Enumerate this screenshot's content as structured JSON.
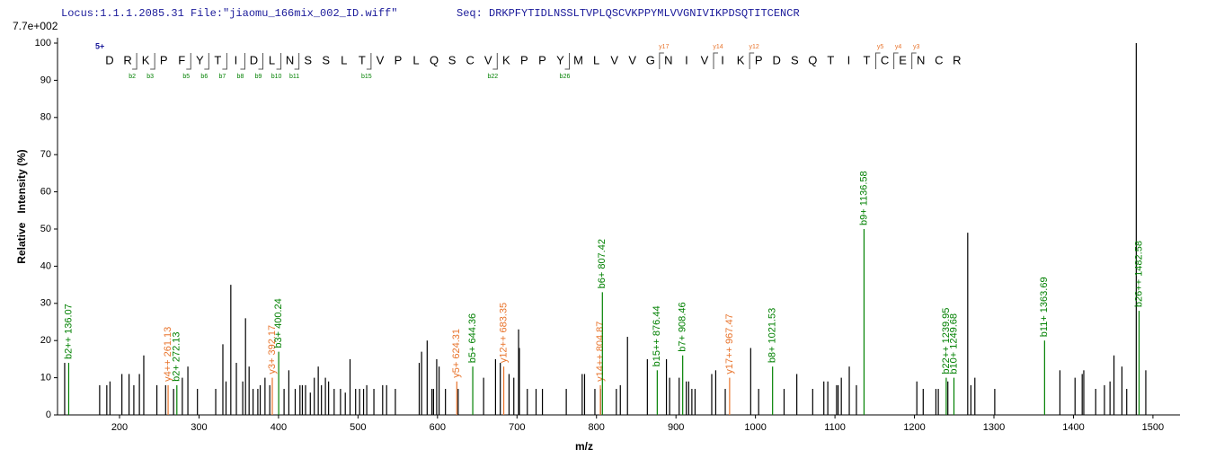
{
  "chart_data": {
    "type": "spectrum",
    "locus": "Locus:1.1.1.2085.31 File:\"jiaomu_166mix_002_ID.wiff\"",
    "seq": "Seq: DRKPFYTIDLNSSLTVPLQSCVKPPYMLVVGNIVIKPDSQTITCENCR",
    "scale_label": "7.7e+002",
    "charge": "5+",
    "x_label": "m/z",
    "y_label": "Relative   Intensity (%)",
    "xlim": [
      122,
      1534
    ],
    "ylim": [
      0,
      100
    ],
    "xticks": [
      200,
      300,
      400,
      500,
      600,
      700,
      800,
      900,
      1000,
      1100,
      1200,
      1300,
      1400,
      1500
    ],
    "yticks": [
      0,
      10,
      20,
      30,
      40,
      50,
      60,
      70,
      80,
      90,
      100
    ],
    "peak_color": "#000000",
    "sequence": [
      {
        "aa": "D"
      },
      {
        "aa": "R",
        "b": "b2"
      },
      {
        "aa": "K",
        "b": "b3"
      },
      {
        "aa": "P"
      },
      {
        "aa": "F",
        "b": "b5"
      },
      {
        "aa": "Y",
        "b": "b6"
      },
      {
        "aa": "T",
        "b": "b7"
      },
      {
        "aa": "I",
        "b": "b8"
      },
      {
        "aa": "D",
        "b": "b9"
      },
      {
        "aa": "L",
        "b": "b10"
      },
      {
        "aa": "N",
        "b": "b11"
      },
      {
        "aa": "S"
      },
      {
        "aa": "S"
      },
      {
        "aa": "L"
      },
      {
        "aa": "T",
        "b": "b15"
      },
      {
        "aa": "V"
      },
      {
        "aa": "P"
      },
      {
        "aa": "L"
      },
      {
        "aa": "Q"
      },
      {
        "aa": "S"
      },
      {
        "aa": "C"
      },
      {
        "aa": "V",
        "b": "b22"
      },
      {
        "aa": "K"
      },
      {
        "aa": "P"
      },
      {
        "aa": "P"
      },
      {
        "aa": "Y",
        "b": "b26"
      },
      {
        "aa": "M"
      },
      {
        "aa": "L"
      },
      {
        "aa": "V"
      },
      {
        "aa": "V"
      },
      {
        "aa": "G"
      },
      {
        "aa": "N",
        "y": "y17"
      },
      {
        "aa": "I"
      },
      {
        "aa": "V"
      },
      {
        "aa": "I",
        "y": "y14"
      },
      {
        "aa": "K"
      },
      {
        "aa": "P",
        "y": "y12"
      },
      {
        "aa": "D"
      },
      {
        "aa": "S"
      },
      {
        "aa": "Q"
      },
      {
        "aa": "T"
      },
      {
        "aa": "I"
      },
      {
        "aa": "T"
      },
      {
        "aa": "C",
        "y": "y5"
      },
      {
        "aa": "E",
        "y": "y4"
      },
      {
        "aa": "N",
        "y": "y3"
      },
      {
        "aa": "C"
      },
      {
        "aa": "R"
      }
    ],
    "b_color": "#008000",
    "y_color": "#e8742c",
    "peaks": {
      "x": [
        131,
        175,
        184,
        188,
        203,
        212,
        218,
        225,
        230.5,
        247,
        258,
        268,
        279,
        286,
        298,
        321,
        330,
        334,
        340,
        347,
        355,
        358.5,
        363,
        368,
        374,
        377,
        383,
        389,
        407,
        413,
        421,
        427,
        430,
        434,
        440,
        445,
        450,
        454,
        459,
        463,
        470,
        478,
        484,
        490,
        497,
        502,
        507,
        511,
        520,
        531,
        536,
        547,
        577,
        580,
        587,
        593,
        595,
        599,
        602,
        610,
        626,
        658,
        673,
        679,
        690,
        696,
        702,
        703,
        713,
        724,
        732,
        762,
        782,
        785,
        798,
        805,
        825,
        830,
        839,
        864,
        888,
        892,
        904,
        913,
        916,
        920,
        924,
        945,
        950,
        962,
        994,
        1004,
        1036,
        1052,
        1072,
        1086,
        1091,
        1102,
        1104,
        1108,
        1118,
        1127,
        1203,
        1211,
        1227,
        1230,
        1242,
        1267,
        1271,
        1276,
        1301,
        1383,
        1402,
        1411,
        1413,
        1428,
        1439,
        1446,
        1451,
        1461,
        1467,
        1479,
        1491
      ],
      "values": [
        14,
        8,
        8,
        9,
        11,
        11,
        8,
        11,
        16,
        8,
        8,
        7,
        10,
        13,
        7,
        7,
        19,
        9,
        35,
        14,
        9,
        26,
        13,
        7,
        7,
        8,
        10,
        8,
        7,
        12,
        7,
        8,
        8,
        8,
        6,
        10,
        13,
        8,
        10,
        9,
        7,
        7,
        6,
        15,
        7,
        7,
        7,
        8,
        7,
        8,
        8,
        7,
        14,
        17,
        20,
        7,
        7,
        15,
        13,
        7,
        7,
        10,
        15,
        14,
        11,
        10,
        23,
        18,
        7,
        7,
        7,
        7,
        11,
        11,
        7,
        7,
        7,
        8,
        21,
        15,
        15,
        10,
        10,
        9,
        9,
        7,
        7,
        11,
        12,
        7,
        18,
        7,
        7,
        11,
        7,
        9,
        9,
        8,
        8,
        10,
        13,
        8,
        9,
        7,
        7,
        7,
        9,
        49,
        8,
        10,
        7,
        12,
        10,
        11,
        12,
        7,
        8,
        9,
        16,
        13,
        7,
        100,
        12
      ]
    },
    "ions": [
      {
        "label": "b2++ 136.07",
        "x": 136.07,
        "value": 14,
        "color": "#008000"
      },
      {
        "label": "y4++ 261.13",
        "x": 261.13,
        "value": 8,
        "color": "#e8742c"
      },
      {
        "label": "b2+ 272.13",
        "x": 272.13,
        "value": 8,
        "color": "#008000"
      },
      {
        "label": "y3+ 392.17",
        "x": 392.17,
        "value": 10,
        "color": "#e8742c"
      },
      {
        "label": "b3+ 400.24",
        "x": 400.24,
        "value": 17,
        "color": "#008000"
      },
      {
        "label": "y5+ 624.31",
        "x": 624.31,
        "value": 9,
        "color": "#e8742c"
      },
      {
        "label": "b5+ 644.36",
        "x": 644.36,
        "value": 13,
        "color": "#008000"
      },
      {
        "label": "y12++ 683.35",
        "x": 683.35,
        "value": 13,
        "color": "#e8742c"
      },
      {
        "label": "y14++ 804.87",
        "x": 804.87,
        "value": 8,
        "color": "#e8742c"
      },
      {
        "label": "b6+ 807.42",
        "x": 807.42,
        "value": 33,
        "color": "#008000"
      },
      {
        "label": "b15++ 876.44",
        "x": 876.44,
        "value": 12,
        "color": "#008000"
      },
      {
        "label": "b7+ 908.46",
        "x": 908.46,
        "value": 16,
        "color": "#008000"
      },
      {
        "label": "y17++ 967.47",
        "x": 967.47,
        "value": 10,
        "color": "#e8742c"
      },
      {
        "label": "b8+ 1021.53",
        "x": 1021.53,
        "value": 13,
        "color": "#008000"
      },
      {
        "label": "b9+ 1136.58",
        "x": 1136.58,
        "value": 50,
        "color": "#008000"
      },
      {
        "label": "b22++ 1239.95",
        "x": 1239.95,
        "value": 10,
        "color": "#008000"
      },
      {
        "label": "b10+ 1249.68",
        "x": 1249.68,
        "value": 10,
        "color": "#008000"
      },
      {
        "label": "b11+ 1363.69",
        "x": 1363.69,
        "value": 20,
        "color": "#008000"
      },
      {
        "label": "b26++ 1482.58",
        "x": 1482.58,
        "value": 28,
        "color": "#008000"
      }
    ]
  }
}
